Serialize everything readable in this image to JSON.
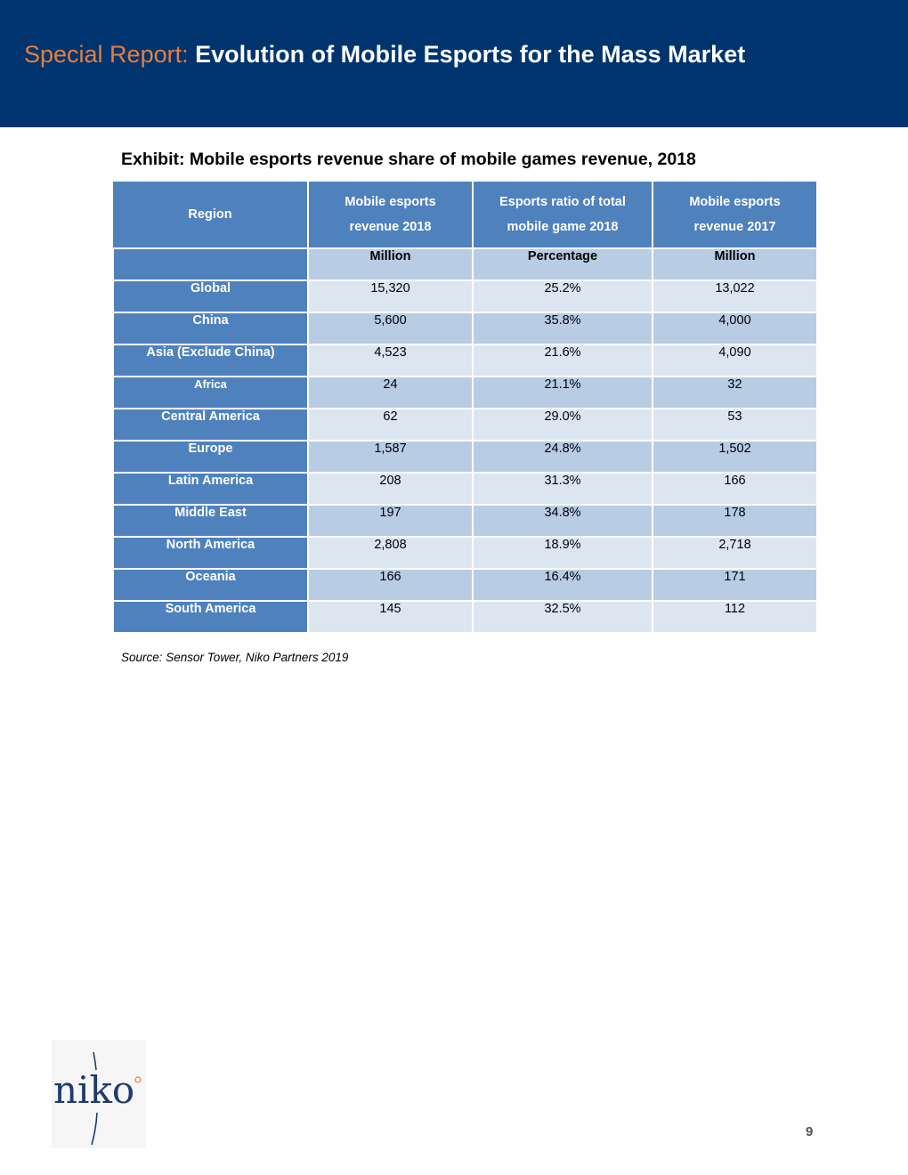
{
  "header": {
    "prefix": "Special Report:",
    "title": "Evolution of Mobile Esports for the Mass Market"
  },
  "exhibit": {
    "title": "Exhibit: Mobile esports revenue share of mobile games revenue, 2018",
    "columns": [
      {
        "line1": "Region",
        "line2": "",
        "unit": ""
      },
      {
        "line1": "Mobile esports",
        "line2": "revenue 2018",
        "unit": "Million"
      },
      {
        "line1": "Esports ratio of total",
        "line2": "mobile game 2018",
        "unit": "Percentage"
      },
      {
        "line1": "Mobile esports",
        "line2": "revenue 2017",
        "unit": "Million"
      }
    ],
    "rows": [
      {
        "region": "Global",
        "revenue_2018": "15,320",
        "ratio_2018": "25.2%",
        "revenue_2017": "13,022"
      },
      {
        "region": "China",
        "revenue_2018": "5,600",
        "ratio_2018": "35.8%",
        "revenue_2017": "4,000"
      },
      {
        "region": "Asia (Exclude China)",
        "revenue_2018": "4,523",
        "ratio_2018": "21.6%",
        "revenue_2017": "4,090"
      },
      {
        "region": "Africa",
        "revenue_2018": "24",
        "ratio_2018": "21.1%",
        "revenue_2017": "32"
      },
      {
        "region": "Central America",
        "revenue_2018": "62",
        "ratio_2018": "29.0%",
        "revenue_2017": "53"
      },
      {
        "region": "Europe",
        "revenue_2018": "1,587",
        "ratio_2018": "24.8%",
        "revenue_2017": "1,502"
      },
      {
        "region": "Latin America",
        "revenue_2018": "208",
        "ratio_2018": "31.3%",
        "revenue_2017": "166"
      },
      {
        "region": "Middle East",
        "revenue_2018": "197",
        "ratio_2018": "34.8%",
        "revenue_2017": "178"
      },
      {
        "region": "North America",
        "revenue_2018": "2,808",
        "ratio_2018": "18.9%",
        "revenue_2017": "2,718"
      },
      {
        "region": "Oceania",
        "revenue_2018": "166",
        "ratio_2018": "16.4%",
        "revenue_2017": "171"
      },
      {
        "region": "South America",
        "revenue_2018": "145",
        "ratio_2018": "32.5%",
        "revenue_2017": "112"
      }
    ],
    "source": "Source: Sensor Tower, Niko Partners 2019"
  },
  "logo": {
    "text": "niko"
  },
  "footer": {
    "page_number": "9"
  },
  "colors": {
    "banner": "#00346e",
    "accent": "#e2803c",
    "header_blue": "#4f81bd",
    "row_dark": "#b8cce4",
    "row_light": "#dce6f1"
  }
}
